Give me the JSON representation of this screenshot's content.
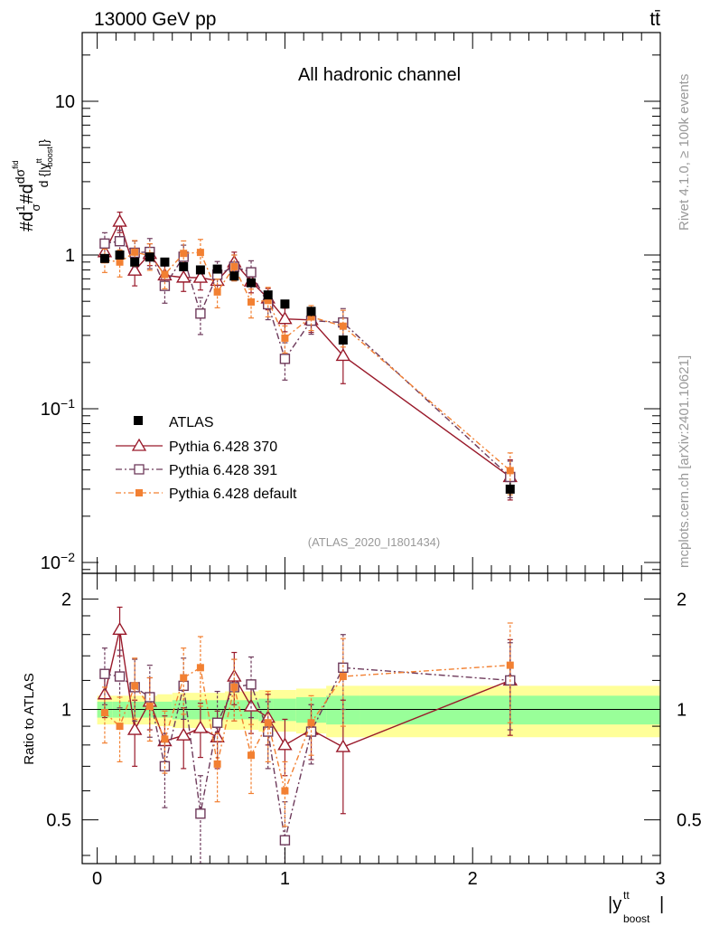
{
  "header": {
    "left": "13000 GeV pp",
    "right": "tt̄"
  },
  "side_labels": {
    "rivet": "Rivet 4.1.0, ≥ 100k events",
    "mcplots": "mcplots.cern.ch [arXiv:2401.10621]"
  },
  "chart_data": {
    "type": "scatter",
    "title": "All hadronic channel",
    "analysis_id": "(ATLAS_2020_I1801434)",
    "xlabel": "|y^tt_boost|",
    "ylabel": "#d1/σ#dσ^fid/d{|y^tt_boost|}",
    "ratio_ylabel": "Ratio to ATLAS",
    "xlim": [
      -0.08,
      3.0
    ],
    "ylim": [
      0.0085,
      28
    ],
    "yscale": "log",
    "ratio_ylim": [
      0.38,
      2.35
    ],
    "x_ticks": [
      "0",
      "1",
      "2",
      "3"
    ],
    "x_tick_values": [
      0,
      1,
      2,
      3
    ],
    "y_ticks": [
      {
        "value": 10,
        "label": "10"
      },
      {
        "value": 1,
        "label": "1"
      },
      {
        "value": 0.1,
        "label": "10^-1"
      },
      {
        "value": 0.01,
        "label": "10^-2"
      }
    ],
    "ratio_ticks": [
      {
        "value": 2,
        "label": "2"
      },
      {
        "value": 1,
        "label": "1"
      },
      {
        "value": 0.5,
        "label": "0.5"
      }
    ],
    "bins": [
      {
        "lo": 0.0,
        "hi": 0.08
      },
      {
        "lo": 0.08,
        "hi": 0.16
      },
      {
        "lo": 0.16,
        "hi": 0.24
      },
      {
        "lo": 0.24,
        "hi": 0.32
      },
      {
        "lo": 0.32,
        "hi": 0.4
      },
      {
        "lo": 0.4,
        "hi": 0.5
      },
      {
        "lo": 0.5,
        "hi": 0.58
      },
      {
        "lo": 0.58,
        "hi": 0.68
      },
      {
        "lo": 0.68,
        "hi": 0.76
      },
      {
        "lo": 0.76,
        "hi": 0.86
      },
      {
        "lo": 0.86,
        "hi": 0.94
      },
      {
        "lo": 0.94,
        "hi": 1.06
      },
      {
        "lo": 1.06,
        "hi": 1.22
      },
      {
        "lo": 1.22,
        "hi": 1.4
      },
      {
        "lo": 1.4,
        "hi": 3.0
      }
    ],
    "x": [
      0.04,
      0.12,
      0.2,
      0.28,
      0.36,
      0.46,
      0.55,
      0.64,
      0.73,
      0.82,
      0.91,
      1.0,
      1.14,
      1.31,
      2.2
    ],
    "data": {
      "name": "ATLAS",
      "color": "#000000",
      "values": [
        0.95,
        1.0,
        0.9,
        0.97,
        0.9,
        0.84,
        0.8,
        0.81,
        0.73,
        0.66,
        0.55,
        0.48,
        0.43,
        0.28,
        0.03
      ],
      "err": [
        0.04,
        0.04,
        0.04,
        0.04,
        0.04,
        0.04,
        0.04,
        0.04,
        0.04,
        0.04,
        0.03,
        0.03,
        0.03,
        0.02,
        0.003
      ],
      "band_inner": [
        0.05,
        0.05,
        0.05,
        0.05,
        0.05,
        0.06,
        0.06,
        0.06,
        0.06,
        0.06,
        0.07,
        0.07,
        0.08,
        0.09,
        0.09
      ],
      "band_outer": [
        0.09,
        0.09,
        0.09,
        0.09,
        0.1,
        0.11,
        0.11,
        0.11,
        0.12,
        0.12,
        0.13,
        0.13,
        0.14,
        0.16,
        0.16
      ]
    },
    "series": [
      {
        "name": "Pythia 6.428 370",
        "color": "#99192a",
        "marker": "open-triangle",
        "dash": "",
        "ratio": [
          1.1,
          1.65,
          0.88,
          1.05,
          0.82,
          0.85,
          0.89,
          0.84,
          1.23,
          1.02,
          0.95,
          0.8,
          0.88,
          0.79,
          1.2
        ],
        "ratio_err": [
          0.15,
          0.25,
          0.18,
          0.17,
          0.14,
          0.16,
          0.15,
          0.15,
          0.2,
          0.16,
          0.15,
          0.14,
          0.15,
          0.27,
          0.35
        ]
      },
      {
        "name": "Pythia 6.428 391",
        "color": "#6e3a5b",
        "marker": "open-square",
        "dash": "7,3,2,3",
        "ratio": [
          1.25,
          1.23,
          1.15,
          1.08,
          0.7,
          1.16,
          0.52,
          0.92,
          1.15,
          1.17,
          0.87,
          0.44,
          0.87,
          1.3,
          1.2
        ],
        "ratio_err": [
          0.22,
          0.22,
          0.22,
          0.24,
          0.16,
          0.22,
          0.14,
          0.2,
          0.22,
          0.22,
          0.18,
          0.12,
          0.16,
          0.3,
          0.32
        ]
      },
      {
        "name": "Pythia 6.428 default",
        "color": "#f28032",
        "marker": "filled-square",
        "dash": "6,3,2,3",
        "ratio": [
          0.98,
          0.9,
          1.16,
          1.02,
          0.83,
          1.22,
          1.3,
          0.71,
          1.15,
          0.75,
          0.92,
          0.6,
          0.92,
          1.23,
          1.32
        ],
        "ratio_err": [
          0.17,
          0.18,
          0.22,
          0.2,
          0.16,
          0.25,
          0.28,
          0.15,
          0.22,
          0.16,
          0.2,
          0.12,
          0.17,
          0.33,
          0.4
        ]
      }
    ],
    "legend_position": "lower-left"
  }
}
